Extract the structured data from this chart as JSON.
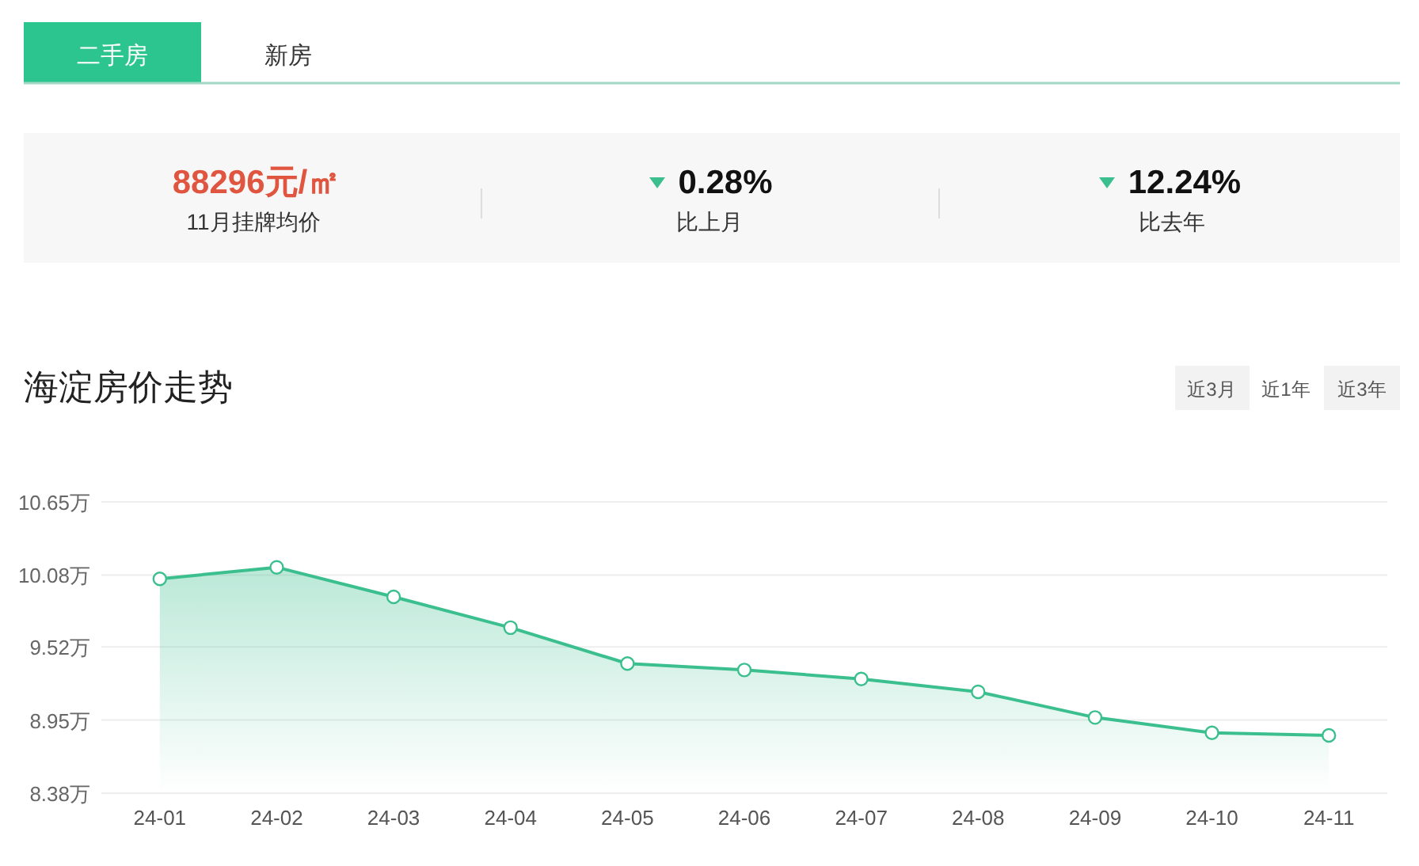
{
  "chart_data": {
    "type": "area",
    "title": "海淀房价走势",
    "categories": [
      "24-01",
      "24-02",
      "24-03",
      "24-04",
      "24-05",
      "24-06",
      "24-07",
      "24-08",
      "24-09",
      "24-10",
      "24-11"
    ],
    "series": [
      {
        "color": "#3bbf8f",
        "values": [
          10.05,
          10.14,
          9.91,
          9.67,
          9.39,
          9.34,
          9.27,
          9.17,
          8.97,
          8.85,
          8.83
        ]
      }
    ],
    "ylim": [
      8.38,
      10.65
    ],
    "yticks": [
      {
        "value": 8.38,
        "label": "8.38万"
      },
      {
        "value": 8.95,
        "label": "8.95万"
      },
      {
        "value": 9.52,
        "label": "9.52万"
      },
      {
        "value": 10.08,
        "label": "10.08万"
      },
      {
        "value": 10.65,
        "label": "10.65万"
      }
    ],
    "grid": "y",
    "marker": "circle",
    "line_style": "solid",
    "annotations": [
      "二手房",
      "新房",
      "88296元/㎡",
      "11月挂牌均价",
      "0.28%",
      "比上月",
      "12.24%",
      "比去年",
      "近3月",
      "近1年",
      "近3年"
    ]
  }
}
